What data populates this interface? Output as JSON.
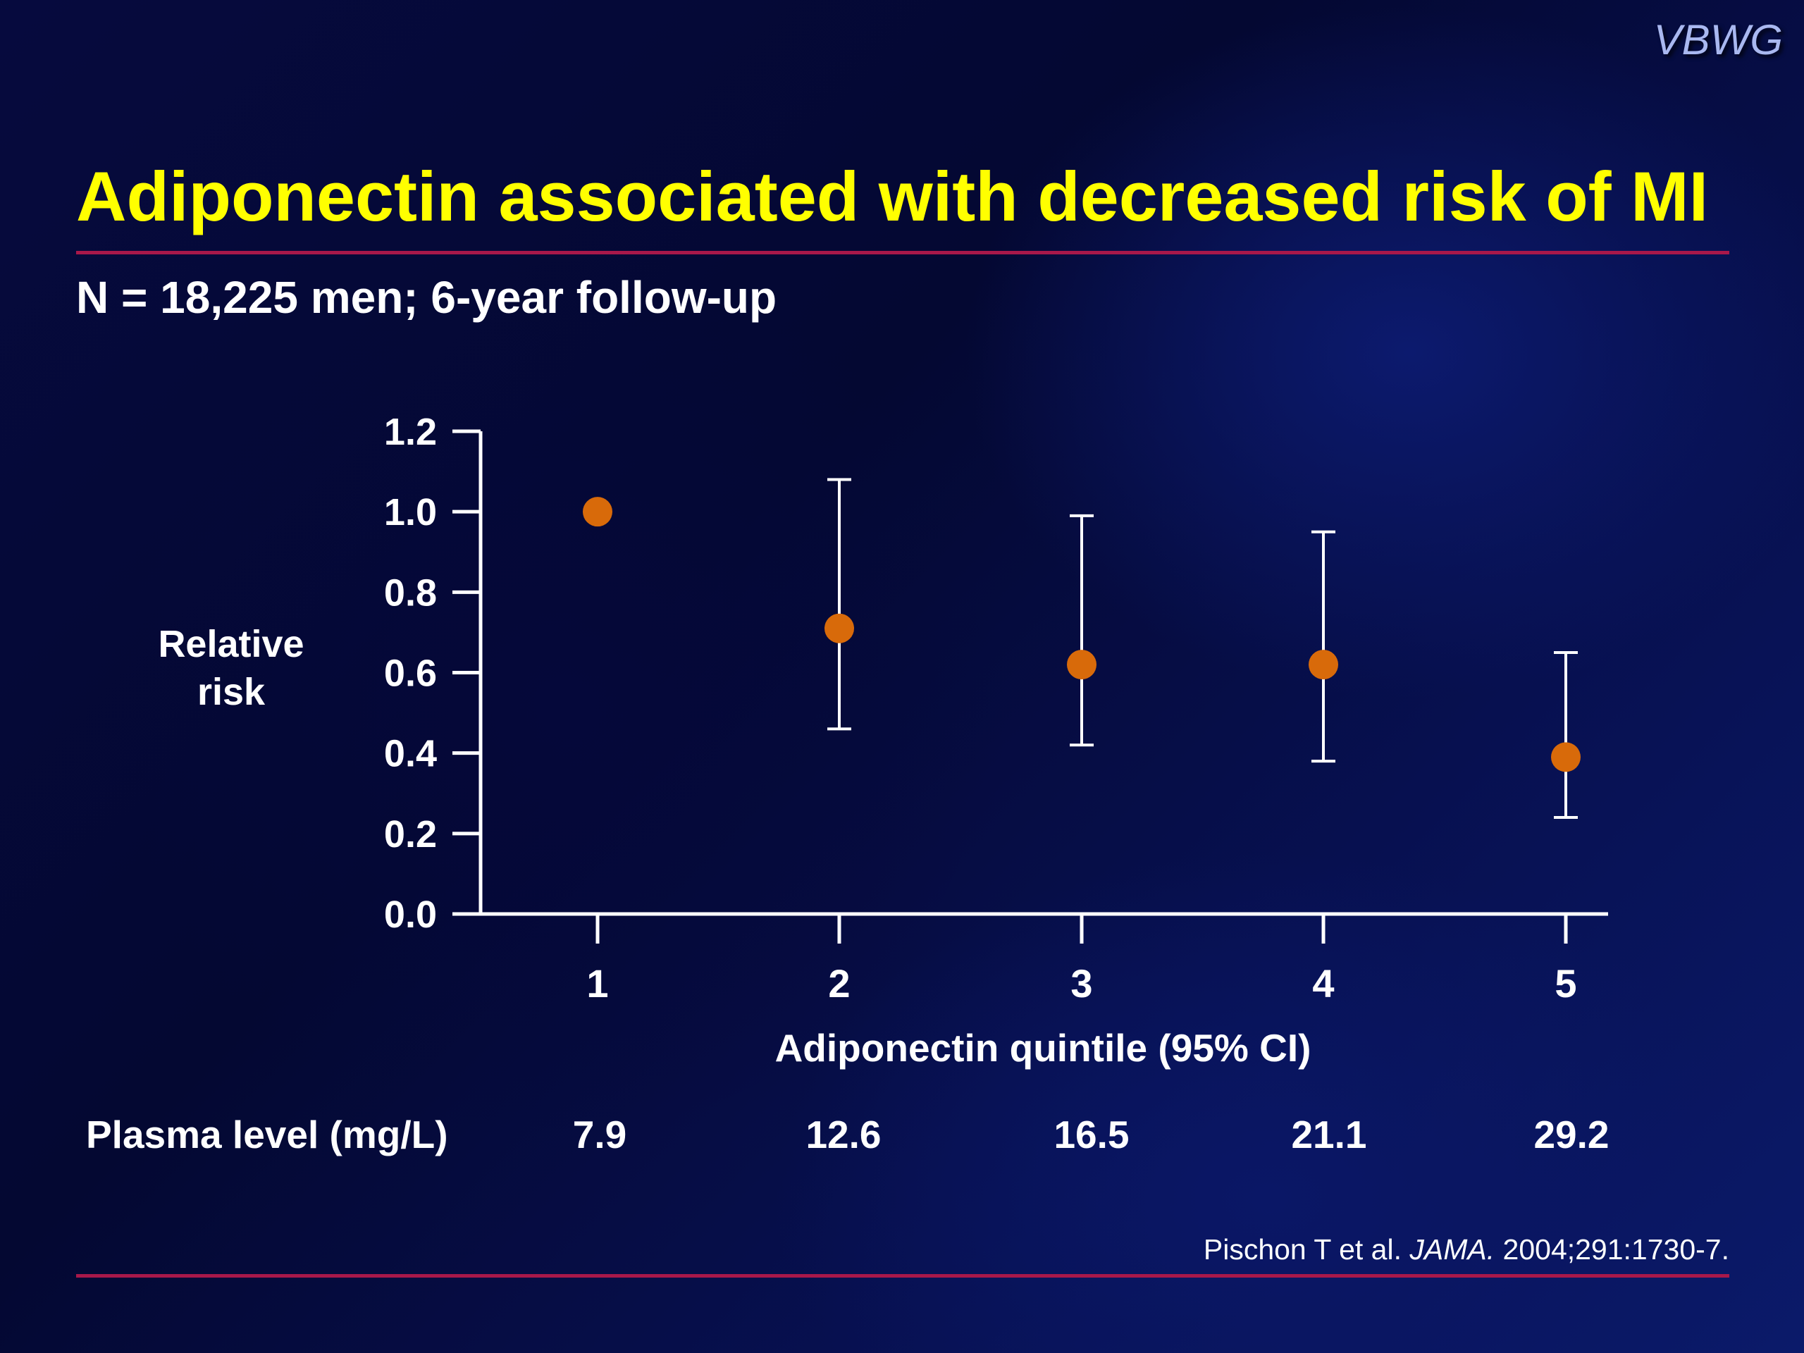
{
  "logo": "VBWG",
  "title": "Adiponectin associated with decreased risk of MI",
  "subtitle": "N = 18,225 men; 6-year follow-up",
  "citation": {
    "authors": "Pischon T et al.",
    "journal": "JAMA.",
    "details": "2004;291:1730-7."
  },
  "plasma": {
    "label": "Plasma level (mg/L)",
    "values": [
      "7.9",
      "12.6",
      "16.5",
      "21.1",
      "29.2"
    ]
  },
  "colors": {
    "title": "#ffff00",
    "rule": "#a8184a",
    "point": "#d86a0a",
    "axis": "#ffffff"
  },
  "chart_data": {
    "type": "scatter",
    "ylabel": "Relative\nrisk",
    "xlabel": "Adiponectin quintile (95% CI)",
    "categories": [
      "1",
      "2",
      "3",
      "4",
      "5"
    ],
    "ylim": [
      0.0,
      1.2
    ],
    "yticks": [
      "0.0",
      "0.2",
      "0.4",
      "0.6",
      "0.8",
      "1.0",
      "1.2"
    ],
    "grid": false,
    "series": [
      {
        "values": [
          1.0,
          0.71,
          0.62,
          0.62,
          0.39
        ],
        "ci_low": [
          null,
          0.46,
          0.42,
          0.38,
          0.24
        ],
        "ci_high": [
          null,
          1.08,
          0.99,
          0.95,
          0.65
        ]
      }
    ]
  }
}
